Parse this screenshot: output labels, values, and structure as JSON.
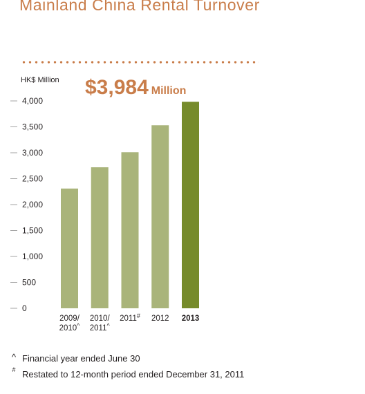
{
  "colors": {
    "accent": "#c97d4a",
    "bar": "#a9b47a",
    "bar_highlight": "#768b2b",
    "tick": "#a3a3a3",
    "text": "#231f20"
  },
  "chart_data": {
    "type": "bar",
    "title": "Mainland China Rental Turnover",
    "ylabel": "HK$ Million",
    "xlabel": "",
    "ylim": [
      0,
      4000
    ],
    "yticks": [
      {
        "value": 0,
        "label": "0"
      },
      {
        "value": 500,
        "label": "500"
      },
      {
        "value": 1000,
        "label": "1,000"
      },
      {
        "value": 1500,
        "label": "1,500"
      },
      {
        "value": 2000,
        "label": "2,000"
      },
      {
        "value": 2500,
        "label": "2,500"
      },
      {
        "value": 3000,
        "label": "3,000"
      },
      {
        "value": 3500,
        "label": "3,500"
      },
      {
        "value": 4000,
        "label": "4,000"
      }
    ],
    "categories": [
      {
        "lines": [
          "2009/",
          "2010"
        ],
        "mark": "^",
        "bold": false
      },
      {
        "lines": [
          "2010/",
          "2011"
        ],
        "mark": "^",
        "bold": false
      },
      {
        "lines": [
          "2011"
        ],
        "mark": "#",
        "bold": false
      },
      {
        "lines": [
          "2012"
        ],
        "mark": "",
        "bold": false
      },
      {
        "lines": [
          "2013"
        ],
        "mark": "",
        "bold": true
      }
    ],
    "values": [
      2310,
      2720,
      3010,
      3530,
      3984
    ],
    "highlight_index": 4,
    "annotation": {
      "value": "$3,984",
      "unit": "Million"
    },
    "grid": false
  },
  "footnotes": [
    {
      "symbol": "^",
      "text": "Financial year ended June 30"
    },
    {
      "symbol": "#",
      "text": "Restated to 12-month period ended December 31, 2011"
    }
  ]
}
